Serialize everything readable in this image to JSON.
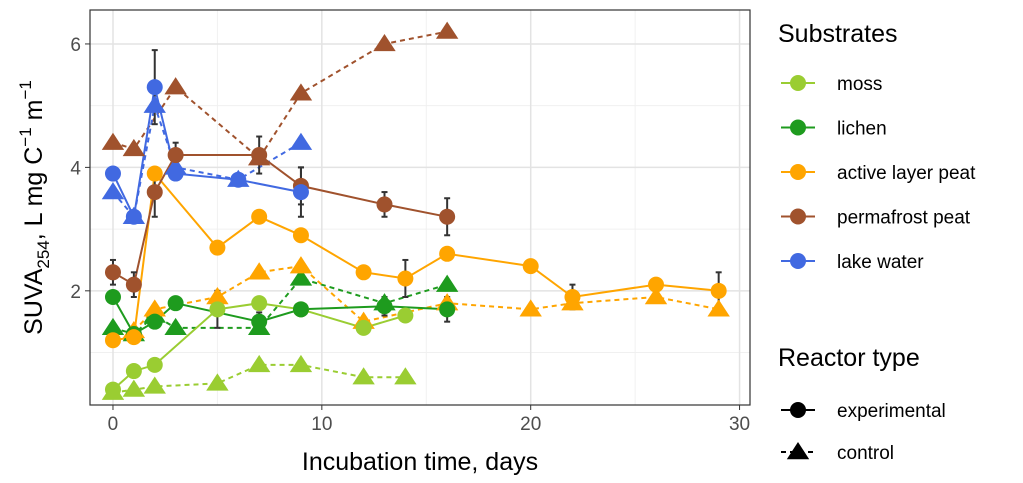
{
  "chart_data": {
    "type": "line",
    "xlabel": "Incubation time, days",
    "ylabel_main": "SUVA",
    "ylabel_sub": "254",
    "ylabel_rest": ", L mg C",
    "ylabel_exp1": "−1",
    "ylabel_m": " m",
    "ylabel_exp2": "−1",
    "xlim": [
      -1.1,
      30.5
    ],
    "ylim": [
      0.15,
      6.55
    ],
    "xticks": [
      0,
      10,
      20,
      30
    ],
    "yticks": [
      2,
      4,
      6
    ],
    "grid": true,
    "legend_position": "right",
    "legend_substrates": {
      "title": "Substrates",
      "items": [
        {
          "label": "moss",
          "color": "#9ACD32"
        },
        {
          "label": "lichen",
          "color": "#1E9B1E"
        },
        {
          "label": "active layer peat",
          "color": "#FFA500"
        },
        {
          "label": "permafrost peat",
          "color": "#A0522D"
        },
        {
          "label": "lake water",
          "color": "#4169E1"
        }
      ]
    },
    "legend_reactor": {
      "title": "Reactor type",
      "items": [
        {
          "label": "experimental",
          "marker": "circle",
          "linestyle": "solid"
        },
        {
          "label": "control",
          "marker": "triangle",
          "linestyle": "dashed"
        }
      ]
    },
    "series": [
      {
        "name": "moss",
        "reactor": "control",
        "color": "#9ACD32",
        "x": [
          0,
          1,
          2,
          5,
          7,
          9,
          12,
          14
        ],
        "y": [
          0.35,
          0.4,
          0.45,
          0.5,
          0.8,
          0.8,
          0.6,
          0.6
        ],
        "err": [
          0,
          0,
          0,
          0,
          0,
          0,
          0,
          0
        ]
      },
      {
        "name": "lichen",
        "reactor": "control",
        "color": "#1E9B1E",
        "x": [
          0,
          1,
          2,
          3,
          7,
          9,
          13,
          16
        ],
        "y": [
          1.4,
          1.3,
          1.6,
          1.4,
          1.4,
          2.2,
          1.8,
          2.1
        ],
        "err": [
          0,
          0,
          0,
          0,
          0,
          0,
          0,
          0
        ]
      },
      {
        "name": "active layer peat",
        "reactor": "control",
        "color": "#FFA500",
        "x": [
          1,
          2,
          5,
          7,
          9,
          12,
          16,
          20,
          22,
          26,
          29
        ],
        "y": [
          1.35,
          1.7,
          1.9,
          2.3,
          2.4,
          1.5,
          1.8,
          1.7,
          1.8,
          1.9,
          1.7
        ],
        "err": [
          0,
          0,
          0,
          0,
          0,
          0,
          0,
          0,
          0,
          0,
          0
        ]
      },
      {
        "name": "permafrost peat",
        "reactor": "control",
        "color": "#A0522D",
        "x": [
          0,
          1,
          3,
          7,
          9,
          13,
          16
        ],
        "y": [
          4.4,
          4.3,
          5.3,
          4.15,
          5.2,
          6.0,
          6.2
        ],
        "err": [
          0,
          0,
          0,
          0,
          0,
          0,
          0
        ]
      },
      {
        "name": "lake water",
        "reactor": "control",
        "color": "#4169E1",
        "x": [
          0,
          1,
          2,
          3,
          6,
          9
        ],
        "y": [
          3.6,
          3.2,
          5.0,
          4.0,
          3.8,
          4.4
        ],
        "err": [
          0,
          0,
          0,
          0,
          0,
          0
        ]
      },
      {
        "name": "moss",
        "reactor": "experimental",
        "color": "#9ACD32",
        "x": [
          0,
          1,
          2,
          5,
          7,
          9,
          12,
          14
        ],
        "y": [
          0.4,
          0.7,
          0.8,
          1.7,
          1.8,
          1.7,
          1.4,
          1.6
        ],
        "err": [
          0.04,
          0.04,
          0.04,
          0.3,
          0.04,
          0.04,
          0.04,
          0.1
        ]
      },
      {
        "name": "lichen",
        "reactor": "experimental",
        "color": "#1E9B1E",
        "x": [
          0,
          1,
          2,
          3,
          7,
          9,
          13,
          16
        ],
        "y": [
          1.9,
          1.3,
          1.5,
          1.8,
          1.5,
          1.7,
          1.75,
          1.7
        ],
        "err": [
          0.04,
          0.04,
          0.04,
          0.1,
          0.15,
          0.08,
          0.15,
          0.2
        ]
      },
      {
        "name": "active layer peat",
        "reactor": "experimental",
        "color": "#FFA500",
        "x": [
          0,
          1,
          2,
          5,
          7,
          9,
          12,
          14,
          16,
          20,
          22,
          26,
          29
        ],
        "y": [
          1.2,
          1.25,
          3.9,
          2.7,
          3.2,
          2.9,
          2.3,
          2.2,
          2.6,
          2.4,
          1.9,
          2.1,
          2.0
        ],
        "err": [
          0.04,
          0.04,
          0.04,
          0.04,
          0.08,
          0.04,
          0.1,
          0.3,
          0.1,
          0.1,
          0.2,
          0.04,
          0.3
        ]
      },
      {
        "name": "permafrost peat",
        "reactor": "experimental",
        "color": "#A0522D",
        "x": [
          0,
          1,
          2,
          3,
          7,
          9,
          13,
          16
        ],
        "y": [
          2.3,
          2.1,
          3.6,
          4.2,
          4.2,
          3.7,
          3.4,
          3.2
        ],
        "err": [
          0.2,
          0.2,
          0.4,
          0.2,
          0.3,
          0.3,
          0.2,
          0.3
        ]
      },
      {
        "name": "lake water",
        "reactor": "experimental",
        "color": "#4169E1",
        "x": [
          0,
          1,
          2,
          3,
          6,
          9
        ],
        "y": [
          3.9,
          3.2,
          5.3,
          3.9,
          3.8,
          3.6
        ],
        "err": [
          0.1,
          0.1,
          0.6,
          0.1,
          0.05,
          0.4
        ]
      }
    ]
  }
}
